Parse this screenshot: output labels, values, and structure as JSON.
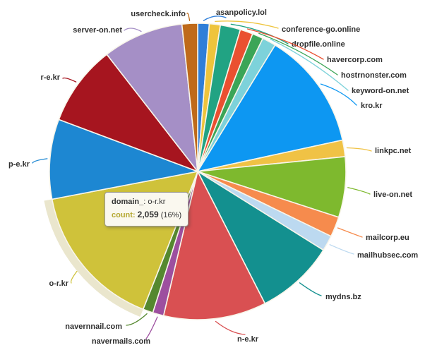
{
  "page": {
    "background": "#ffffff"
  },
  "chart_data": {
    "type": "pie",
    "title": "",
    "legend": "none",
    "labels_position": "outside-with-leader-lines",
    "start_angle_deg": 0,
    "slices": [
      {
        "label": "asanpolicy.lol",
        "percent": 1.25,
        "color": "#2f7ed8"
      },
      {
        "label": "conference-go.online",
        "percent": 1.2,
        "color": "#eec43c"
      },
      {
        "label": "dropfile.online",
        "percent": 2.2,
        "color": "#21a383"
      },
      {
        "label": "havercorp.com",
        "percent": 1.4,
        "color": "#ea5030"
      },
      {
        "label": "hostrnonster.com",
        "percent": 1.2,
        "color": "#3ba557"
      },
      {
        "label": "keyword-on.net",
        "percent": 1.5,
        "color": "#7dd2da"
      },
      {
        "label": "kro.kr",
        "percent": 12.85,
        "color": "#0d97f2"
      },
      {
        "label": "linkpc.net",
        "percent": 1.8,
        "color": "#f0c245"
      },
      {
        "label": "live-on.net",
        "percent": 6.6,
        "color": "#7eb92e"
      },
      {
        "label": "mailcorp.eu",
        "percent": 2.2,
        "color": "#f68b4d"
      },
      {
        "label": "mailhubsec.com",
        "percent": 1.7,
        "color": "#bcd9f0"
      },
      {
        "label": "mydns.bz",
        "percent": 8.6,
        "color": "#13908f"
      },
      {
        "label": "n-e.kr",
        "percent": 11.2,
        "color": "#d95052"
      },
      {
        "label": "navermails.com",
        "percent": 1.2,
        "color": "#9d4f9f"
      },
      {
        "label": "navernnail.com",
        "percent": 1.1,
        "color": "#55882f"
      },
      {
        "label": "o-r.kr",
        "percent": 16.0,
        "color": "#cfc23a"
      },
      {
        "label": "p-e.kr",
        "percent": 8.7,
        "color": "#1d87d2"
      },
      {
        "label": "r-e.kr",
        "percent": 8.8,
        "color": "#a6151f"
      },
      {
        "label": "server-on.net",
        "percent": 8.8,
        "color": "#a58fc6"
      },
      {
        "label": "usercheck.info",
        "percent": 1.7,
        "color": "#bf6a1a"
      }
    ],
    "highlight_slice": "o-r.kr",
    "highlight_halo_color": "#eae6cd",
    "slice_border_color": "#f8f5ea"
  },
  "tooltip": {
    "key_label": "domain_",
    "key_rest": ": o-r.kr",
    "count_label": "count:",
    "count_value": "2,059",
    "count_rest": "(16%)",
    "count_label_color": "#b5a832"
  }
}
